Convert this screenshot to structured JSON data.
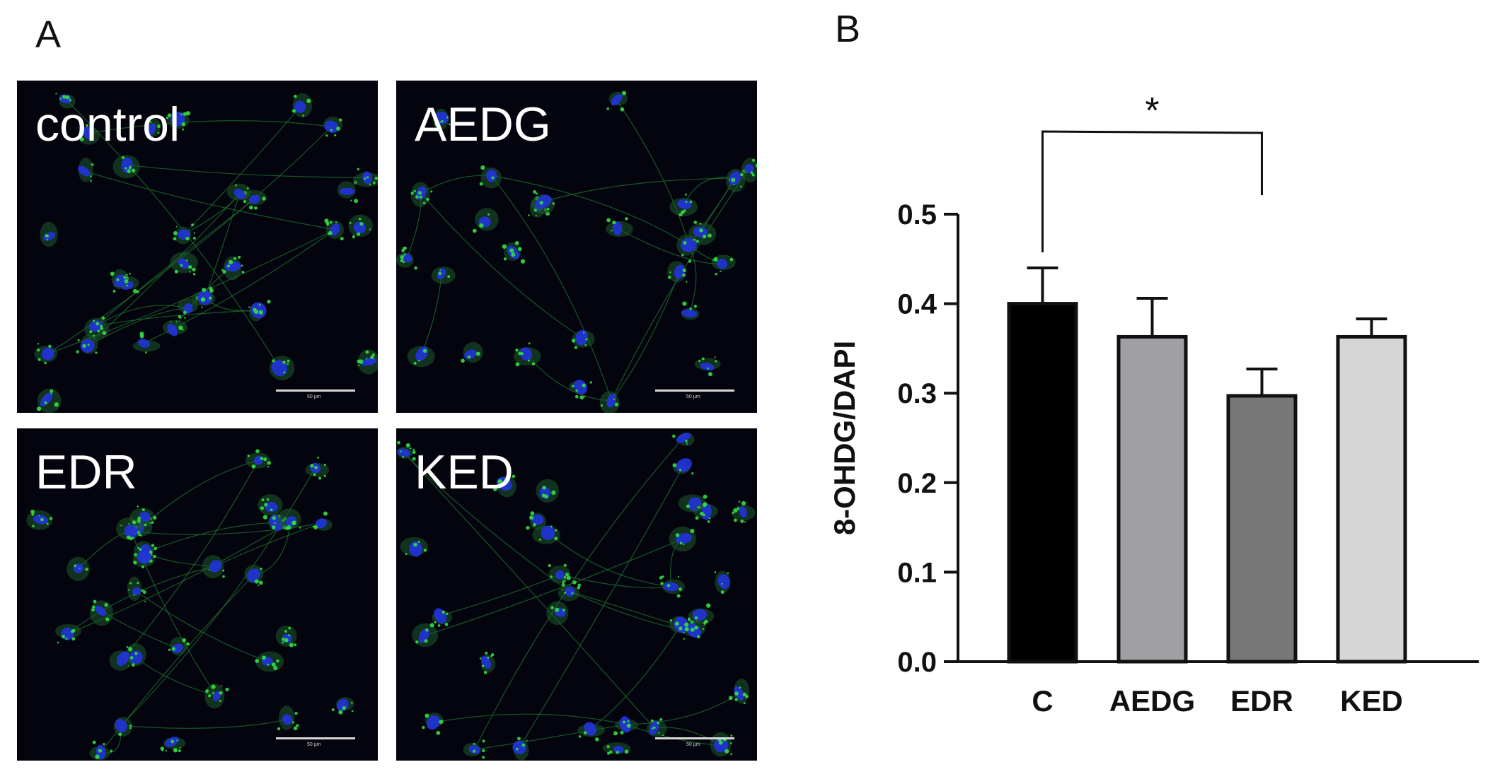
{
  "panels": {
    "a_label": "A",
    "b_label": "B"
  },
  "micrographs": [
    {
      "label": "control",
      "scale_text": "50 µm"
    },
    {
      "label": "AEDG",
      "scale_text": "50 µm"
    },
    {
      "label": "EDR",
      "scale_text": "50 µm"
    },
    {
      "label": "KED",
      "scale_text": "50 µm"
    }
  ],
  "colors": {
    "micro_background": "#04040f",
    "nuclei": "#2233dd",
    "stain": "#33dd44",
    "axis": "#111111"
  },
  "chart_data": {
    "type": "bar",
    "title": "",
    "xlabel": "",
    "ylabel": "8-OHDG/DAPI",
    "categories": [
      "C",
      "AEDG",
      "EDR",
      "KED"
    ],
    "values": [
      0.4,
      0.363,
      0.297,
      0.363
    ],
    "error_upper": [
      0.04,
      0.043,
      0.03,
      0.02
    ],
    "bar_colors": [
      "#000000",
      "#a0a0a4",
      "#787878",
      "#d6d6d6"
    ],
    "ylim": [
      0,
      0.5
    ],
    "yticks": [
      "0.0",
      "0.1",
      "0.2",
      "0.3",
      "0.4",
      "0.5"
    ],
    "grid": false,
    "significance": {
      "from": "C",
      "to": "EDR",
      "label": "*"
    }
  }
}
